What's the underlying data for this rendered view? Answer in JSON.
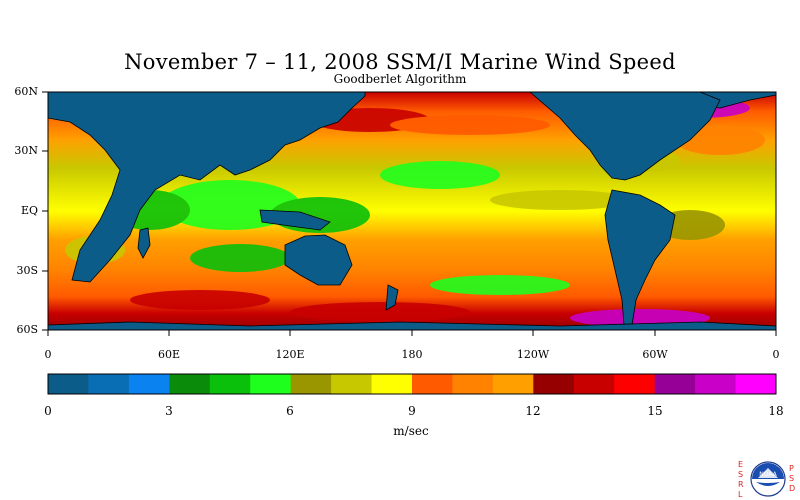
{
  "title": "November 7 – 11, 2008 SSM/I Marine Wind Speed",
  "subtitle": "Goodberlet Algorithm",
  "lat_labels": [
    "60N",
    "30N",
    "EQ",
    "30S",
    "60S"
  ],
  "lon_labels": [
    "0",
    "60E",
    "120E",
    "180",
    "120W",
    "60W",
    "0"
  ],
  "colorbar": {
    "unit": "m/sec",
    "min": 0,
    "max": 18,
    "tick_values": [
      "0",
      "3",
      "6",
      "9",
      "12",
      "15",
      "18"
    ],
    "colors": [
      "#0c5c8a",
      "#0a6eb4",
      "#0a82f0",
      "#0a8c0a",
      "#0ac00a",
      "#1eff1e",
      "#9a9600",
      "#c8c800",
      "#ffff00",
      "#ff5a00",
      "#ff8200",
      "#ffa000",
      "#960000",
      "#c80000",
      "#ff0000",
      "#960096",
      "#c800c8",
      "#ff00ff"
    ]
  },
  "map": {
    "projection": "equirectangular",
    "lon_range": [
      0,
      360
    ],
    "lat_range": [
      -60,
      60
    ],
    "land_color": "#0c5c8a"
  },
  "logo": {
    "left_letters": [
      "E",
      "S",
      "R",
      "L"
    ],
    "right_letters": [
      "P",
      "S",
      "D"
    ],
    "emblem": "NOAA"
  }
}
